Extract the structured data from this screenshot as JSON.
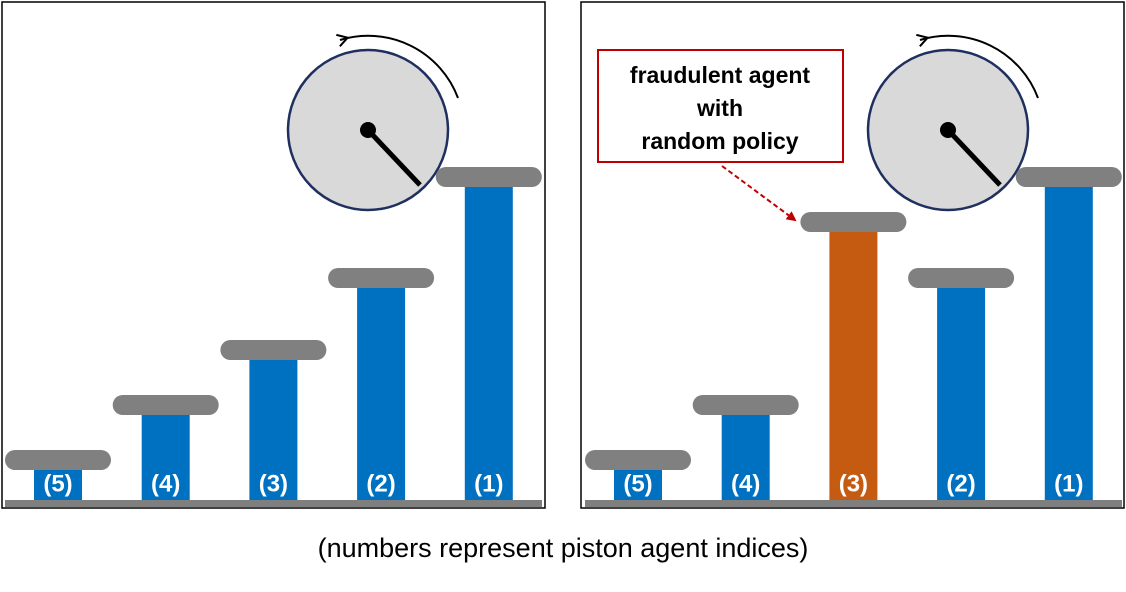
{
  "panels": [
    {
      "pistons": [
        "(5)",
        "(4)",
        "(3)",
        "(2)",
        "(1)"
      ]
    },
    {
      "pistons": [
        "(5)",
        "(4)",
        "(3)",
        "(2)",
        "(1)"
      ],
      "callout": [
        "fraudulent agent",
        "with",
        "random policy"
      ]
    }
  ],
  "caption": "(numbers represent piston agent indices)"
}
